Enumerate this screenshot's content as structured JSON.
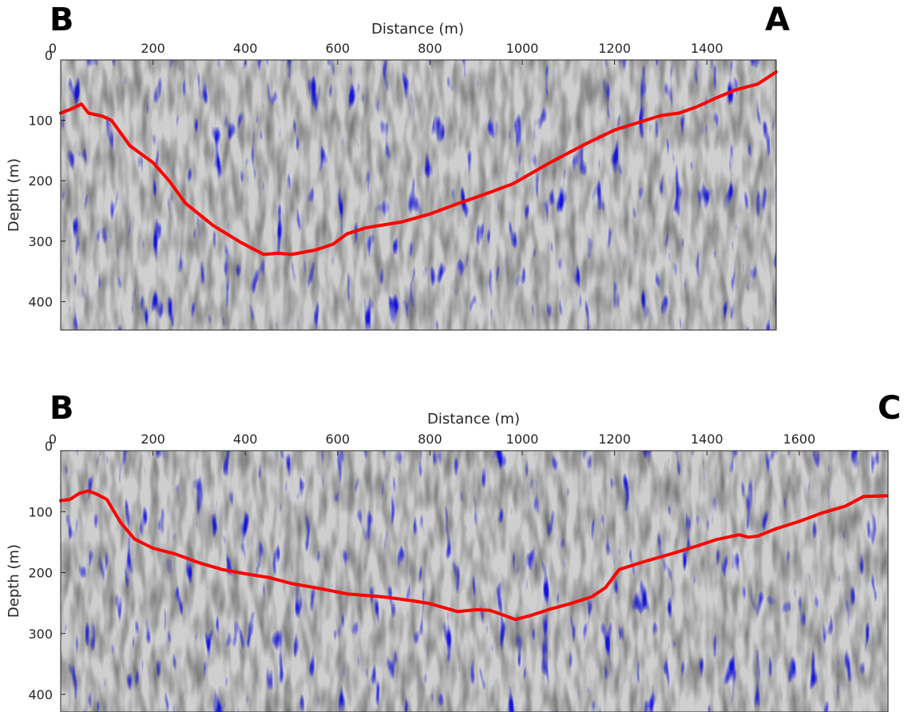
{
  "chart_data": [
    {
      "type": "line",
      "corner_labels": {
        "left": "B",
        "right": "A"
      },
      "xlabel": "Distance (m)",
      "ylabel": "Depth (m)",
      "xlim": [
        0,
        1550
      ],
      "ylim": [
        0,
        450
      ],
      "y_reversed": true,
      "x_axis_position": "top",
      "x_ticks": [
        "0",
        "200",
        "400",
        "600",
        "800",
        "1000",
        "1200",
        "1400"
      ],
      "y_ticks": [
        "0",
        "100",
        "200",
        "300",
        "400"
      ],
      "background": "seismic-section",
      "line_color": "#ff0000",
      "series": [
        {
          "x": [
            0,
            20,
            32,
            45,
            60,
            90,
            110,
            150,
            200,
            235,
            270,
            330,
            390,
            440,
            470,
            500,
            550,
            590,
            620,
            660,
            700,
            740,
            800,
            860,
            920,
            980,
            1060,
            1140,
            1200,
            1250,
            1300,
            1340,
            1380,
            1420,
            1460,
            1510,
            1550
          ],
          "y": [
            88,
            82,
            78,
            73,
            88,
            93,
            100,
            142,
            170,
            200,
            237,
            274,
            302,
            322,
            320,
            322,
            315,
            305,
            288,
            278,
            273,
            268,
            255,
            238,
            222,
            205,
            170,
            138,
            116,
            104,
            92,
            88,
            77,
            63,
            50,
            40,
            20
          ]
        }
      ]
    },
    {
      "type": "line",
      "corner_labels": {
        "left": "B",
        "right": "C"
      },
      "xlabel": "Distance (m)",
      "ylabel": "Depth (m)",
      "xlim": [
        0,
        1790
      ],
      "ylim": [
        0,
        450
      ],
      "y_reversed": true,
      "x_axis_position": "top",
      "x_ticks": [
        "0",
        "200",
        "400",
        "600",
        "800",
        "1000",
        "1200",
        "1400",
        "1600"
      ],
      "y_ticks": [
        "0",
        "100",
        "200",
        "300",
        "400"
      ],
      "background": "seismic-section",
      "line_color": "#ff0000",
      "series": [
        {
          "x": [
            0,
            20,
            40,
            60,
            80,
            100,
            130,
            160,
            200,
            250,
            300,
            350,
            400,
            450,
            500,
            560,
            620,
            700,
            760,
            800,
            860,
            900,
            930,
            960,
            985,
            1020,
            1060,
            1100,
            1150,
            1180,
            1210,
            1260,
            1320,
            1380,
            1420,
            1470,
            1490,
            1510,
            1550,
            1600,
            1650,
            1700,
            1740,
            1790
          ],
          "y": [
            82,
            80,
            70,
            66,
            72,
            80,
            118,
            145,
            160,
            170,
            184,
            195,
            202,
            208,
            218,
            226,
            235,
            240,
            246,
            251,
            264,
            261,
            262,
            270,
            277,
            270,
            260,
            252,
            240,
            225,
            195,
            183,
            170,
            156,
            146,
            138,
            142,
            140,
            128,
            116,
            102,
            91,
            75,
            74
          ]
        }
      ]
    }
  ]
}
